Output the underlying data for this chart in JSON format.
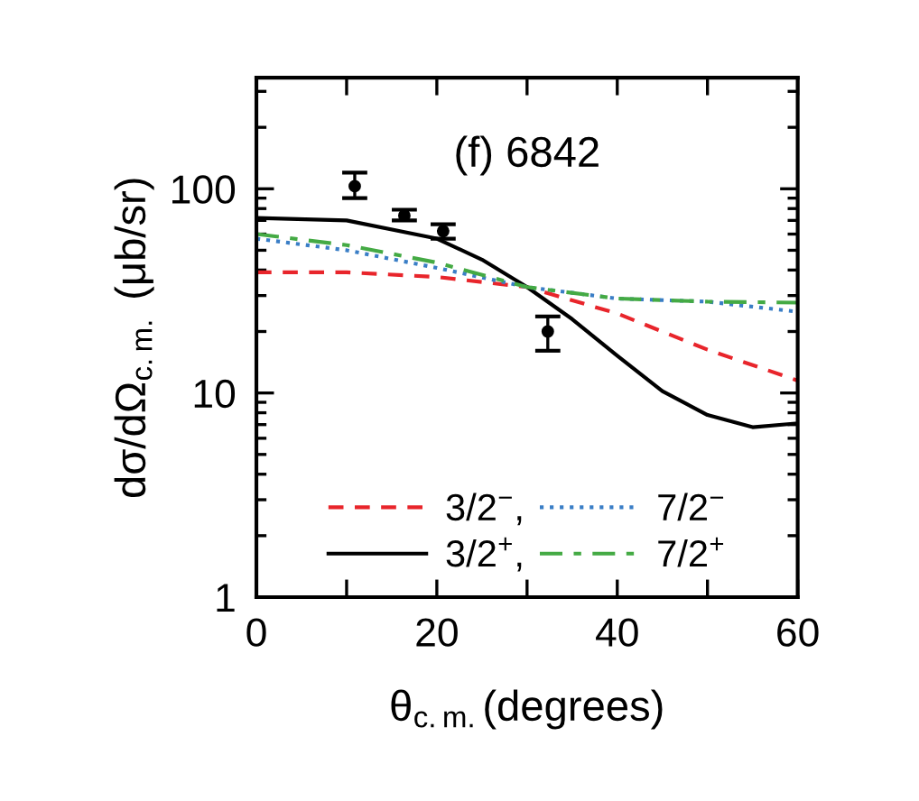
{
  "chart_data": {
    "type": "line",
    "xlabel": "θ$_{c.m.}$(degrees)",
    "ylabel": "dσ/dΩ$_{c.m.}$ (μb/sr)",
    "annotations": [
      "(f) 6842"
    ],
    "log": "y",
    "xlim": [
      0,
      60
    ],
    "ylim": [
      1,
      350
    ],
    "xticks": [
      0,
      {
        "value": 10,
        "label": null
      },
      20,
      {
        "value": 30,
        "label": null
      },
      40,
      {
        "value": 50,
        "label": null
      },
      60
    ],
    "yticks": [
      1,
      10,
      100
    ],
    "grid": false,
    "legend": "bottom",
    "series": [
      {
        "name": "3/2$^{−}$,",
        "line_style": "dashed",
        "color": "#e8252b",
        "x": [
          0,
          10,
          20,
          30,
          40,
          50,
          60
        ],
        "values": [
          39,
          39,
          37,
          33,
          24.5,
          16.3,
          11.5
        ]
      },
      {
        "name": "3/2$^{+}$,",
        "line_style": "solid",
        "color": "#000000",
        "x": [
          0,
          10,
          20,
          25,
          30,
          35,
          40,
          45,
          50,
          55,
          60
        ],
        "values": [
          72,
          70,
          57,
          45,
          33,
          23,
          15.2,
          10.2,
          7.8,
          6.8,
          7.1
        ]
      },
      {
        "name": "7/2$^{−}$",
        "line_style": "dotted",
        "color": "#3a7ec6",
        "x": [
          0,
          10,
          20,
          30,
          40,
          50,
          60
        ],
        "values": [
          57,
          50,
          41,
          33,
          29,
          28,
          25
        ]
      },
      {
        "name": "7/2$^{+}$",
        "line_style": "dashdot",
        "color": "#44aa44",
        "x": [
          0,
          10,
          20,
          30,
          40,
          50,
          60
        ],
        "values": [
          60,
          53,
          43.5,
          33,
          29,
          28,
          27.7
        ]
      },
      {
        "type": "scatter",
        "marker": "circle",
        "color": "#000000",
        "x": [
          10.9,
          16.4,
          20.7,
          32.3
        ],
        "values": [
          103,
          74,
          62,
          20
        ],
        "errors": [
          [
            90,
            120
          ],
          [
            70,
            79
          ],
          [
            57,
            67
          ],
          [
            16.1,
            23.7
          ]
        ]
      }
    ]
  }
}
